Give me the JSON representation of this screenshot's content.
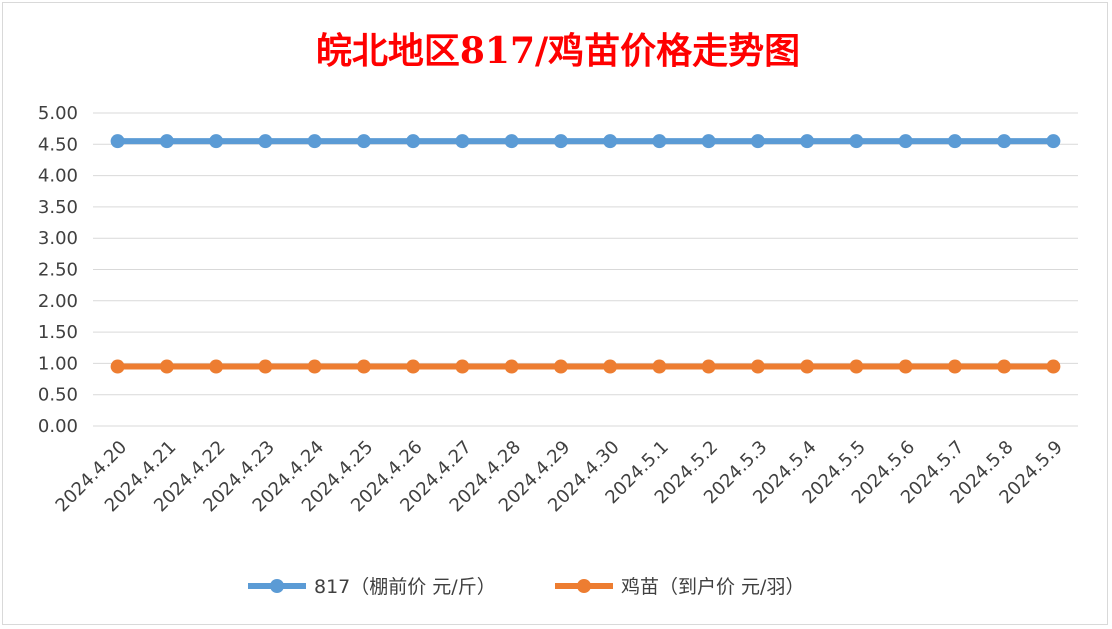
{
  "chart_data": {
    "type": "line",
    "title": "皖北地区817/鸡苗价格走势图",
    "xlabel": "",
    "ylabel": "",
    "ylim": [
      0,
      5
    ],
    "yticks": [
      "0.00",
      "0.50",
      "1.00",
      "1.50",
      "2.00",
      "2.50",
      "3.00",
      "3.50",
      "4.00",
      "4.50",
      "5.00"
    ],
    "grid": true,
    "legend_position": "bottom",
    "categories": [
      "2024.4.20",
      "2024.4.21",
      "2024.4.22",
      "2024.4.23",
      "2024.4.24",
      "2024.4.25",
      "2024.4.26",
      "2024.4.27",
      "2024.4.28",
      "2024.4.29",
      "2024.4.30",
      "2024.5.1",
      "2024.5.2",
      "2024.5.3",
      "2024.5.4",
      "2024.5.5",
      "2024.5.6",
      "2024.5.7",
      "2024.5.8",
      "2024.5.9"
    ],
    "series": [
      {
        "name": "817（棚前价 元/斤）",
        "color": "#5b9bd5",
        "values": [
          4.55,
          4.55,
          4.55,
          4.55,
          4.55,
          4.55,
          4.55,
          4.55,
          4.55,
          4.55,
          4.55,
          4.55,
          4.55,
          4.55,
          4.55,
          4.55,
          4.55,
          4.55,
          4.55,
          4.55
        ]
      },
      {
        "name": "鸡苗（到户价 元/羽）",
        "color": "#ed7d31",
        "values": [
          0.95,
          0.95,
          0.95,
          0.95,
          0.95,
          0.95,
          0.95,
          0.95,
          0.95,
          0.95,
          0.95,
          0.95,
          0.95,
          0.95,
          0.95,
          0.95,
          0.95,
          0.95,
          0.95,
          0.95
        ]
      }
    ]
  }
}
